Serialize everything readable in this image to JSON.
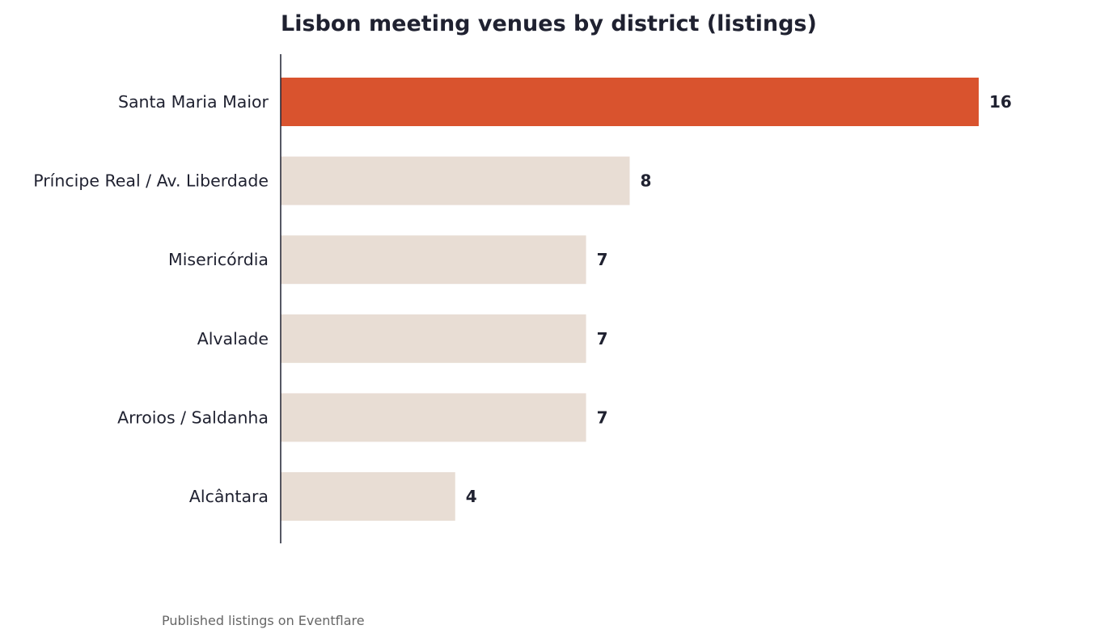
{
  "chart_data": {
    "type": "bar",
    "orientation": "horizontal",
    "title": "Lisbon meeting venues by district (listings)",
    "xlabel": "",
    "ylabel": "",
    "categories": [
      "Santa Maria Maior",
      "Príncipe Real / Av. Liberdade",
      "Misericórdia",
      "Alvalade",
      "Arroios / Saldanha",
      "Alcântara"
    ],
    "values": [
      16,
      8,
      7,
      7,
      7,
      4
    ],
    "value_labels": [
      "16",
      "8",
      "7",
      "7",
      "7",
      "4"
    ],
    "xlim": [
      0,
      16
    ],
    "grid": false,
    "legend": "none",
    "colors": {
      "highlight": "#d9532e",
      "default": "#e8ddd4",
      "axis": "#1f2130",
      "text": "#1f2130"
    },
    "highlight_index": 0
  },
  "footnote": "Published listings on Eventflare"
}
